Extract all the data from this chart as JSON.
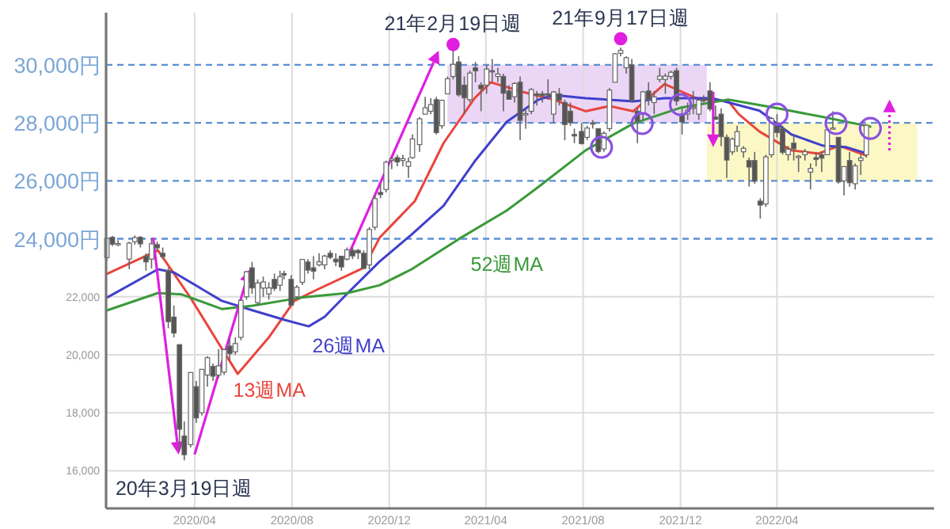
{
  "chart_data": {
    "type": "candlestick",
    "x": [
      "2019-12-13",
      "2019-12-20",
      "2019-12-27",
      "2020-01-10",
      "2020-01-17",
      "2020-01-24",
      "2020-01-31",
      "2020-02-07",
      "2020-02-14",
      "2020-02-21",
      "2020-02-28",
      "2020-03-06",
      "2020-03-13",
      "2020-03-19",
      "2020-03-27",
      "2020-04-03",
      "2020-04-10",
      "2020-04-17",
      "2020-04-24",
      "2020-05-01",
      "2020-05-08",
      "2020-05-15",
      "2020-05-22",
      "2020-05-29",
      "2020-06-05",
      "2020-06-12",
      "2020-06-19",
      "2020-06-26",
      "2020-07-03",
      "2020-07-10",
      "2020-07-17",
      "2020-07-22",
      "2020-07-31",
      "2020-08-07",
      "2020-08-14",
      "2020-08-21",
      "2020-08-28",
      "2020-09-04",
      "2020-09-11",
      "2020-09-18",
      "2020-09-25",
      "2020-10-02",
      "2020-10-09",
      "2020-10-16",
      "2020-10-23",
      "2020-10-30",
      "2020-11-06",
      "2020-11-13",
      "2020-11-20",
      "2020-11-27",
      "2020-12-04",
      "2020-12-11",
      "2020-12-18",
      "2020-12-25",
      "2020-12-30",
      "2021-01-08",
      "2021-01-15",
      "2021-01-22",
      "2021-01-29",
      "2021-02-05",
      "2021-02-12",
      "2021-02-19",
      "2021-02-26",
      "2021-03-05",
      "2021-03-12",
      "2021-03-19",
      "2021-03-26",
      "2021-04-02",
      "2021-04-09",
      "2021-04-16",
      "2021-04-23",
      "2021-04-30",
      "2021-05-07",
      "2021-05-14",
      "2021-05-21",
      "2021-05-28",
      "2021-06-04",
      "2021-06-11",
      "2021-06-18",
      "2021-06-25",
      "2021-07-02",
      "2021-07-09",
      "2021-07-16",
      "2021-07-21",
      "2021-07-30",
      "2021-08-06",
      "2021-08-13",
      "2021-08-20",
      "2021-08-27",
      "2021-09-03",
      "2021-09-10",
      "2021-09-17",
      "2021-09-24",
      "2021-10-01",
      "2021-10-08",
      "2021-10-15",
      "2021-10-22",
      "2021-10-29",
      "2021-11-05",
      "2021-11-12",
      "2021-11-19",
      "2021-11-26",
      "2021-12-03",
      "2021-12-10",
      "2021-12-17",
      "2021-12-24",
      "2021-12-30",
      "2022-01-07",
      "2022-01-14",
      "2022-01-21",
      "2022-01-28",
      "2022-02-04",
      "2022-02-10",
      "2022-02-18",
      "2022-02-25",
      "2022-03-04",
      "2022-03-11",
      "2022-03-18",
      "2022-03-25",
      "2022-04-01",
      "2022-04-08",
      "2022-04-15",
      "2022-04-22",
      "2022-04-28",
      "2022-05-06",
      "2022-05-13",
      "2022-05-20",
      "2022-05-27",
      "2022-06-03",
      "2022-06-10",
      "2022-06-17",
      "2022-06-24",
      "2022-07-01",
      "2022-07-08",
      "2022-07-15",
      "2022-07-22"
    ],
    "ohlc": [
      [
        23350,
        24050,
        23250,
        24023
      ],
      [
        24050,
        24100,
        23750,
        23816
      ],
      [
        23820,
        23950,
        23750,
        23837
      ],
      [
        23300,
        23900,
        22950,
        23850
      ],
      [
        23900,
        24115,
        23800,
        24041
      ],
      [
        24050,
        24100,
        23700,
        23827
      ],
      [
        23400,
        23500,
        22900,
        23205
      ],
      [
        23300,
        23995,
        22975,
        23827
      ],
      [
        23800,
        23900,
        23600,
        23687
      ],
      [
        23500,
        23700,
        23300,
        23386
      ],
      [
        22900,
        23000,
        20916,
        21142
      ],
      [
        21300,
        21700,
        20600,
        20749
      ],
      [
        20350,
        20350,
        16690,
        17431
      ],
      [
        17200,
        17700,
        16358,
        16552
      ],
      [
        16900,
        19400,
        16800,
        19389
      ],
      [
        18900,
        19100,
        17650,
        17820
      ],
      [
        18000,
        19500,
        17900,
        19498
      ],
      [
        19300,
        19950,
        18900,
        19897
      ],
      [
        19600,
        19700,
        19100,
        19262
      ],
      [
        19300,
        20200,
        19200,
        19619
      ],
      [
        19400,
        20200,
        19300,
        20179
      ],
      [
        20300,
        20550,
        19800,
        20037
      ],
      [
        20100,
        20600,
        20000,
        20388
      ],
      [
        20600,
        21900,
        20500,
        21877
      ],
      [
        22000,
        22900,
        21900,
        22863
      ],
      [
        23000,
        23200,
        22100,
        22305
      ],
      [
        21800,
        22600,
        21700,
        22478
      ],
      [
        22300,
        22700,
        22000,
        22512
      ],
      [
        22100,
        22500,
        21900,
        22306
      ],
      [
        22600,
        22800,
        22200,
        22290
      ],
      [
        22400,
        22900,
        22200,
        22696
      ],
      [
        22800,
        22900,
        22600,
        22751
      ],
      [
        22600,
        22750,
        21700,
        21710
      ],
      [
        22000,
        22400,
        21900,
        22329
      ],
      [
        22500,
        23300,
        22400,
        23289
      ],
      [
        23200,
        23300,
        22800,
        22920
      ],
      [
        23000,
        23400,
        22600,
        22882
      ],
      [
        23100,
        23500,
        23050,
        23205
      ],
      [
        23100,
        23450,
        22950,
        23406
      ],
      [
        23500,
        23600,
        23300,
        23360
      ],
      [
        23300,
        23500,
        23050,
        23204
      ],
      [
        23400,
        23400,
        22900,
        23029
      ],
      [
        23300,
        23700,
        23250,
        23619
      ],
      [
        23600,
        23700,
        23300,
        23410
      ],
      [
        23600,
        23650,
        23300,
        23516
      ],
      [
        23500,
        23600,
        22950,
        22977
      ],
      [
        23100,
        24400,
        22950,
        24325
      ],
      [
        24400,
        25500,
        24300,
        25385
      ],
      [
        25600,
        25900,
        25400,
        25527
      ],
      [
        25700,
        26700,
        25600,
        26644
      ],
      [
        26700,
        26800,
        26400,
        26751
      ],
      [
        26800,
        26900,
        26500,
        26652
      ],
      [
        26700,
        26900,
        26500,
        26763
      ],
      [
        26500,
        26800,
        26100,
        26656
      ],
      [
        26800,
        27600,
        26750,
        27444
      ],
      [
        27250,
        28200,
        27000,
        28139
      ],
      [
        28300,
        28900,
        28300,
        28519
      ],
      [
        28400,
        28850,
        28300,
        28631
      ],
      [
        28800,
        28900,
        27600,
        27663
      ],
      [
        27900,
        28800,
        27800,
        28779
      ],
      [
        29000,
        29600,
        29000,
        29520
      ],
      [
        29600,
        30500,
        29500,
        30018
      ],
      [
        30100,
        30300,
        28900,
        28966
      ],
      [
        29300,
        29600,
        28300,
        28864
      ],
      [
        28800,
        29800,
        28700,
        29717
      ],
      [
        29900,
        30100,
        29400,
        29792
      ],
      [
        29300,
        29400,
        28400,
        29176
      ],
      [
        29300,
        30000,
        29000,
        29854
      ],
      [
        29800,
        30200,
        29400,
        29768
      ],
      [
        29600,
        29900,
        29400,
        29683
      ],
      [
        29600,
        29700,
        28400,
        29020
      ],
      [
        29100,
        29300,
        28800,
        28813
      ],
      [
        28900,
        29400,
        28700,
        29357
      ],
      [
        29400,
        29600,
        27400,
        28084
      ],
      [
        28300,
        28500,
        27800,
        28317
      ],
      [
        28400,
        29200,
        28300,
        29149
      ],
      [
        29000,
        29100,
        28600,
        28941
      ],
      [
        29000,
        29100,
        28700,
        28948
      ],
      [
        29000,
        29500,
        28800,
        28964
      ],
      [
        28300,
        29100,
        28000,
        29066
      ],
      [
        29000,
        29200,
        28600,
        28783
      ],
      [
        28700,
        28800,
        27400,
        27940
      ],
      [
        28400,
        28700,
        27900,
        28003
      ],
      [
        27600,
        27800,
        27300,
        27548
      ],
      [
        27700,
        28000,
        27250,
        27283
      ],
      [
        27500,
        27900,
        27400,
        27820
      ],
      [
        28000,
        28100,
        27800,
        27977
      ],
      [
        27800,
        27800,
        26950,
        27013
      ],
      [
        27100,
        27700,
        27000,
        27641
      ],
      [
        27800,
        29200,
        27700,
        29128
      ],
      [
        29400,
        30400,
        29400,
        30381
      ],
      [
        30400,
        30600,
        30300,
        30500
      ],
      [
        29900,
        30300,
        29700,
        30248
      ],
      [
        30000,
        30200,
        28700,
        28771
      ],
      [
        28400,
        28500,
        27300,
        28049
      ],
      [
        28300,
        29100,
        28100,
        29068
      ],
      [
        29100,
        29400,
        28600,
        28804
      ],
      [
        28700,
        29100,
        28300,
        28893
      ],
      [
        29500,
        29900,
        29400,
        29612
      ],
      [
        29500,
        29700,
        29000,
        29610
      ],
      [
        29600,
        29800,
        29500,
        29745
      ],
      [
        29800,
        29900,
        28600,
        28751
      ],
      [
        28300,
        28500,
        27600,
        28029
      ],
      [
        28300,
        28700,
        28100,
        28437
      ],
      [
        28500,
        29100,
        28300,
        28545
      ],
      [
        28300,
        28800,
        28100,
        28782
      ],
      [
        28800,
        28950,
        28700,
        28791
      ],
      [
        29100,
        29400,
        28400,
        28478
      ],
      [
        28200,
        28600,
        28100,
        28124
      ],
      [
        28300,
        28500,
        27200,
        27522
      ],
      [
        27500,
        27600,
        26100,
        26717
      ],
      [
        27000,
        27500,
        26900,
        27439
      ],
      [
        27200,
        27900,
        27000,
        27696
      ],
      [
        27000,
        27200,
        26800,
        27122
      ],
      [
        26700,
        26800,
        25800,
        26476
      ],
      [
        26700,
        27000,
        25900,
        25985
      ],
      [
        25300,
        25400,
        24700,
        25162
      ],
      [
        25200,
        26900,
        25100,
        26827
      ],
      [
        26900,
        28200,
        26800,
        28149
      ],
      [
        28000,
        28300,
        27500,
        27665
      ],
      [
        27800,
        27900,
        26900,
        26985
      ],
      [
        26900,
        27200,
        26700,
        27093
      ],
      [
        27300,
        27600,
        26700,
        27105
      ],
      [
        26800,
        26900,
        26300,
        26847
      ],
      [
        26900,
        27100,
        26700,
        27003
      ],
      [
        26300,
        26600,
        25700,
        26427
      ],
      [
        26800,
        27000,
        26500,
        26739
      ],
      [
        26900,
        27000,
        26300,
        26781
      ],
      [
        26900,
        27800,
        26900,
        27761
      ],
      [
        27800,
        28400,
        27800,
        27824
      ],
      [
        27500,
        27500,
        25900,
        25963
      ],
      [
        26000,
        26500,
        25500,
        26491
      ],
      [
        26700,
        27000,
        25800,
        25935
      ],
      [
        25900,
        26600,
        25700,
        26517
      ],
      [
        26700,
        26900,
        26200,
        26788
      ],
      [
        26900,
        27950,
        26800,
        27915
      ]
    ],
    "series": [
      {
        "type": "line",
        "name": "13週MA",
        "color": "#e8453c",
        "x": [
          "2019-12-13",
          "2020-02-15",
          "2020-03-26",
          "2020-05-05",
          "2020-05-25",
          "2020-07-03",
          "2020-08-04",
          "2020-09-01",
          "2020-10-30",
          "2020-11-19",
          "2021-01-02",
          "2021-02-07",
          "2021-03-18",
          "2021-04-07",
          "2021-05-17",
          "2021-06-25",
          "2021-08-04",
          "2021-09-03",
          "2021-10-03",
          "2021-11-11",
          "2021-12-21",
          "2022-01-30",
          "2022-02-12",
          "2022-03-10",
          "2022-04-19",
          "2022-05-23",
          "2022-06-18",
          "2022-07-21"
        ],
        "values": [
          22790,
          23600,
          22000,
          20220,
          19340,
          20600,
          21860,
          22240,
          23000,
          24040,
          25300,
          27300,
          28850,
          29400,
          29070,
          28800,
          28400,
          28580,
          28400,
          29340,
          28850,
          28750,
          28300,
          27700,
          27050,
          26940,
          27210,
          26880
        ]
      },
      {
        "type": "line",
        "name": "26週MA",
        "color": "#4040cc",
        "x": [
          "2019-12-13",
          "2020-02-15",
          "2020-03-06",
          "2020-05-05",
          "2020-06-13",
          "2020-07-23",
          "2020-08-22",
          "2020-09-11",
          "2020-10-10",
          "2020-11-19",
          "2020-12-29",
          "2021-02-07",
          "2021-03-18",
          "2021-04-27",
          "2021-06-06",
          "2021-06-25",
          "2021-08-04",
          "2021-10-03",
          "2021-11-11",
          "2022-01-10",
          "2022-03-10",
          "2022-04-19",
          "2022-05-29",
          "2022-06-27",
          "2022-07-23"
        ],
        "values": [
          21970,
          22950,
          22840,
          21860,
          21530,
          21200,
          20980,
          21310,
          22130,
          23220,
          24150,
          25140,
          26670,
          28030,
          28800,
          28960,
          28850,
          28740,
          28850,
          28850,
          28420,
          27600,
          27210,
          27160,
          26940
        ]
      },
      {
        "type": "scatter",
        "marker": "circle",
        "color": "#8b52e0",
        "x": [
          "2021-08-24",
          "2021-10-14",
          "2021-12-01",
          "2022-04-01",
          "2022-06-14",
          "2022-07-27"
        ],
        "values": [
          27160,
          27980,
          28630,
          28300,
          27980,
          27810
        ]
      },
      {
        "type": "line",
        "name": "52週MA",
        "color": "#3a9a3a",
        "x": [
          "2019-12-13",
          "2020-02-15",
          "2020-03-16",
          "2020-05-05",
          "2020-06-13",
          "2020-08-12",
          "2020-10-10",
          "2020-11-19",
          "2020-12-29",
          "2021-02-26",
          "2021-04-27",
          "2021-06-06",
          "2021-08-04",
          "2021-10-03",
          "2021-12-01",
          "2022-01-30",
          "2022-03-29",
          "2022-05-29",
          "2022-07-27"
        ],
        "values": [
          21530,
          22130,
          22080,
          21580,
          21690,
          21970,
          22130,
          22400,
          22950,
          23990,
          24970,
          25790,
          27050,
          27980,
          28520,
          28800,
          28520,
          28200,
          27870
        ]
      }
    ],
    "xlim": [
      "2019-12-12",
      "2022-10-15"
    ],
    "xticks": [
      {
        "value": "2020-04-01",
        "label": "2020/04"
      },
      {
        "value": "2020-08-01",
        "label": "2020/08"
      },
      {
        "value": "2020-12-01",
        "label": "2020/12"
      },
      {
        "value": "2021-04-01",
        "label": "2021/04"
      },
      {
        "value": "2021-08-01",
        "label": "2021/08"
      },
      {
        "value": "2021-12-01",
        "label": "2021/12"
      },
      {
        "value": "2022-04-01",
        "label": "2022/04"
      }
    ],
    "ylim": [
      14700,
      31800
    ],
    "yticks": [
      {
        "value": 16000,
        "label": "16,000"
      },
      {
        "value": 18000,
        "label": "18,000"
      },
      {
        "value": 20000,
        "label": "20,000"
      },
      {
        "value": 22000,
        "label": "22,000"
      }
    ],
    "grid": true,
    "ref_lines": [
      {
        "axis": "y",
        "value": 24000,
        "label": "24,000円",
        "color": "#5b8fd4",
        "line_style": "dashed"
      },
      {
        "axis": "y",
        "value": 26000,
        "label": "26,000円",
        "color": "#5b8fd4",
        "line_style": "dashed"
      },
      {
        "axis": "y",
        "value": 28000,
        "label": "28,000円",
        "color": "#5b8fd4",
        "line_style": "dashed"
      },
      {
        "axis": "y",
        "value": 30000,
        "label": "30,000円",
        "color": "#5b8fd4",
        "line_style": "dashed"
      }
    ],
    "annotations": [
      {
        "text": "21年2月19日週",
        "x": "2021-02-19",
        "y": 30700
      },
      {
        "text": "21年9月17日週",
        "x": "2021-09-17",
        "y": 30900
      },
      {
        "text": "20年3月19日週",
        "x": "2020-03-19",
        "y": 16358
      }
    ]
  }
}
